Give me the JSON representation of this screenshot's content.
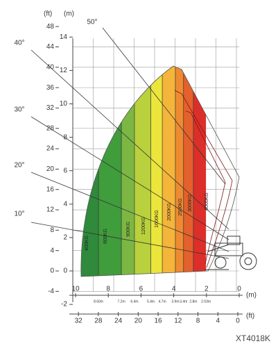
{
  "units": {
    "left_ft": "(ft)",
    "left_m": "(m)",
    "bottom_m": "(m)",
    "bottom_ft": "(ft)"
  },
  "left_ft_ticks": [
    "48",
    "44",
    "40",
    "36",
    "32",
    "28",
    "24",
    "20",
    "16",
    "12",
    "8",
    "4",
    "0",
    "-4"
  ],
  "left_m_ticks": [
    "14",
    "12",
    "10",
    "8",
    "6",
    "4",
    "2",
    "0",
    "-2"
  ],
  "bottom_m_ticks": [
    "10",
    "8",
    "6",
    "4",
    "2",
    "0"
  ],
  "bottom_ft_ticks": [
    "32",
    "28",
    "24",
    "20",
    "16",
    "12",
    "8",
    "4",
    "0"
  ],
  "distances": [
    "8.60m",
    "7.2m",
    "6.4m",
    "5.4m",
    "4.7m",
    "3.9m",
    "3.4m",
    "2.8m",
    "2.03m"
  ],
  "loads": [
    "400KG",
    "600KG",
    "900KG",
    "1200KG",
    "1600KG",
    "2000KG",
    "2500KG",
    "3000KG",
    "4000KG"
  ],
  "angles": [
    "10°",
    "20°",
    "30°",
    "40°",
    "50°"
  ],
  "model": "XT4018K"
}
